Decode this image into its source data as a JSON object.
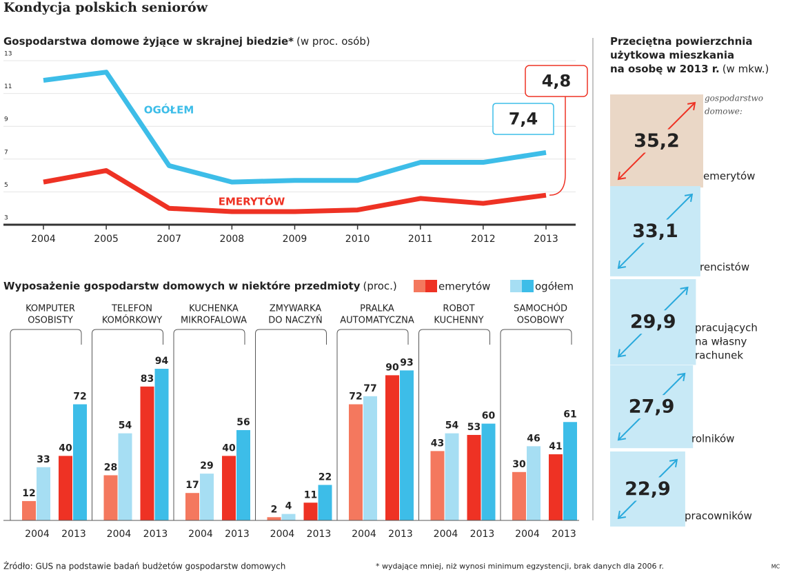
{
  "title": "Kondycja polskich seniorów",
  "source": "Źródło: GUS na podstawie badań budżetów gospodarstw domowych",
  "footnote": "* wydające mniej, niż wynosi minimum egzystencji, brak danych dla 2006 r.",
  "credit": "MC",
  "chart_data": [
    {
      "type": "line",
      "title": "Gospodarstwa domowe żyjące w skrajnej biedzie*",
      "subtitle": "(w proc. osób)",
      "categories": [
        "2004",
        "2005",
        "2007",
        "2008",
        "2009",
        "2010",
        "2011",
        "2012",
        "2013"
      ],
      "ylim": [
        3,
        13
      ],
      "yticks": [
        3,
        5,
        7,
        9,
        11,
        13
      ],
      "grid": true,
      "series": [
        {
          "name": "OGÓŁEM",
          "color": "#3dbde8",
          "values": [
            11.8,
            12.3,
            6.6,
            5.6,
            5.7,
            5.7,
            6.8,
            6.8,
            7.4
          ],
          "value_labels": [
            null,
            null,
            null,
            null,
            null,
            null,
            null,
            null,
            "7,4"
          ]
        },
        {
          "name": "EMERYTÓW",
          "color": "#ee3224",
          "values": [
            5.6,
            6.3,
            4.0,
            3.8,
            3.8,
            3.9,
            4.6,
            4.3,
            4.8
          ],
          "value_labels": [
            null,
            null,
            null,
            null,
            null,
            null,
            null,
            null,
            "4,8"
          ]
        }
      ]
    },
    {
      "type": "grouped-bar",
      "title": "Wyposażenie gospodarstw domowych w niektóre przedmioty",
      "subtitle": "(proc.)",
      "periods": [
        "2004",
        "2013"
      ],
      "categories": [
        [
          "KOMPUTER",
          "OSOBISTY"
        ],
        [
          "TELEFON",
          "KOMÓRKOWY"
        ],
        [
          "KUCHENKA",
          "MIKROFALOWA"
        ],
        [
          "ZMYWARKA",
          "DO NACZYŃ"
        ],
        [
          "PRALKA",
          "AUTOMATYCZNA"
        ],
        [
          "ROBOT",
          "KUCHENNY"
        ],
        [
          "SAMOCHÓD",
          "OSOBOWY"
        ]
      ],
      "series": [
        {
          "name": "emerytów",
          "colors": [
            "#f4785e",
            "#ee3224"
          ],
          "values": [
            [
              12,
              40
            ],
            [
              28,
              83
            ],
            [
              17,
              40
            ],
            [
              2,
              11
            ],
            [
              72,
              90
            ],
            [
              43,
              53
            ],
            [
              30,
              41
            ]
          ]
        },
        {
          "name": "ogółem",
          "colors": [
            "#a6def3",
            "#3dbde8"
          ],
          "values": [
            [
              33,
              72
            ],
            [
              54,
              94
            ],
            [
              29,
              56
            ],
            [
              4,
              22
            ],
            [
              77,
              93
            ],
            [
              54,
              60
            ],
            [
              46,
              61
            ]
          ]
        }
      ]
    },
    {
      "type": "area-square",
      "title": [
        "Przeciętna powierzchnia",
        "użytkowa mieszkania",
        "na osobę w 2013 r."
      ],
      "subtitle": "(w mkw.)",
      "note": [
        "gospodarstwo",
        "domowe:"
      ],
      "categories": [
        [
          "emerytów"
        ],
        [
          "rencistów"
        ],
        [
          "pracujących",
          "na własny",
          "rachunek"
        ],
        [
          "rolników"
        ],
        [
          "pracowników"
        ]
      ],
      "values": [
        35.2,
        33.1,
        29.9,
        27.9,
        22.9
      ],
      "value_labels": [
        "35,2",
        "33,1",
        "29,9",
        "27,9",
        "22,9"
      ],
      "colors": [
        "#ead7c6",
        "#c8e9f6",
        "#c8e9f6",
        "#c8e9f6",
        "#c8e9f6"
      ],
      "arrow_colors": [
        "#ee3224",
        "#29a9dc",
        "#29a9dc",
        "#29a9dc",
        "#29a9dc"
      ]
    }
  ]
}
